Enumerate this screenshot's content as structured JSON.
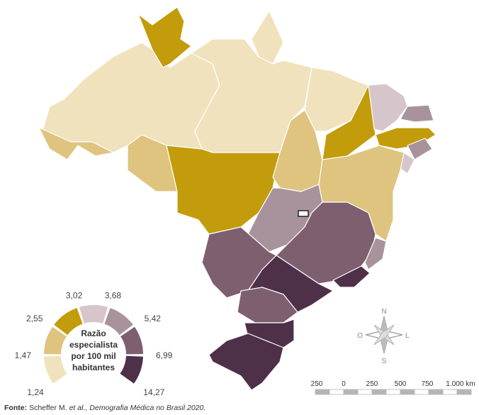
{
  "legend": {
    "title": [
      "Razão",
      "especialista",
      "por 100 mil",
      "habitantes"
    ],
    "breaks": [
      "1,24",
      "1,47",
      "2,55",
      "3,02",
      "3,68",
      "5,42",
      "6,99",
      "14,27"
    ],
    "colors": [
      "#f0e2bc",
      "#dfc47f",
      "#c29c0a",
      "#d6c6cb",
      "#a8939d",
      "#7d5f70",
      "#4e3048"
    ]
  },
  "compass": {
    "north": "N",
    "south": "S",
    "west": "O",
    "east": "L"
  },
  "scale_bar": {
    "labels": [
      "250",
      "0",
      "250",
      "500",
      "750",
      "1.000 km"
    ]
  },
  "source": {
    "label": "Fonte:",
    "author": "Scheffer M.",
    "etal": "et al.,",
    "work": "Demografia Médica no Brasil 2020."
  }
}
